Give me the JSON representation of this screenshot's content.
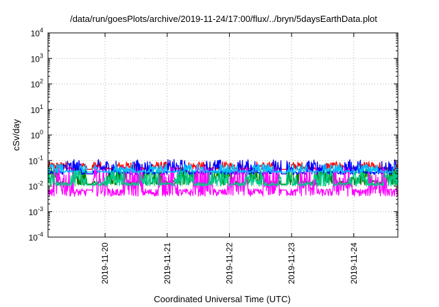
{
  "chart_data": {
    "type": "line",
    "title": "/data/run/goesPlots/archive/2019-11-24/17:00/flux/../bryn/5daysEarthData.plot",
    "xlabel": "Coordinated Universal Time (UTC)",
    "ylabel": "cSv/day",
    "y_scale": "log",
    "ylim": [
      0.0001,
      10000
    ],
    "y_ticks": [
      {
        "base": "10",
        "exp": "4",
        "value": 10000
      },
      {
        "base": "10",
        "exp": "3",
        "value": 1000
      },
      {
        "base": "10",
        "exp": "2",
        "value": 100
      },
      {
        "base": "10",
        "exp": "1",
        "value": 10
      },
      {
        "base": "10",
        "exp": "0",
        "value": 1
      },
      {
        "base": "10",
        "exp": "-1",
        "value": 0.1
      },
      {
        "base": "10",
        "exp": "-2",
        "value": 0.01
      },
      {
        "base": "10",
        "exp": "-3",
        "value": 0.001
      },
      {
        "base": "10",
        "exp": "-4",
        "value": 0.0001
      }
    ],
    "xlim": [
      "2019-11-19T02:00",
      "2019-11-24T17:00"
    ],
    "x_ticks": [
      "2019-11-20",
      "2019-11-21",
      "2019-11-22",
      "2019-11-23",
      "2019-11-24"
    ],
    "grid": true,
    "gaps": [
      [
        "2019-11-19T17:00",
        "2019-11-19T19:00"
      ],
      [
        "2019-11-22T20:00",
        "2019-11-22T22:00"
      ]
    ],
    "series": [
      {
        "color": "#ff0000",
        "baseline": 0.045,
        "low": 0.045,
        "high": 0.09
      },
      {
        "color": "#008000",
        "baseline": 0.012,
        "low": 0.011,
        "high": 0.055
      },
      {
        "color": "#0000ff",
        "baseline": 0.03,
        "low": 0.028,
        "high": 0.11
      },
      {
        "color": "#ff00ff",
        "baseline": 0.007,
        "low": 0.004,
        "high": 0.06
      },
      {
        "color": "#00bfff",
        "baseline": 0.035,
        "low": 0.033,
        "high": 0.075
      },
      {
        "color": "#00cc88",
        "baseline": 0.011,
        "low": 0.01,
        "high": 0.04
      }
    ]
  }
}
